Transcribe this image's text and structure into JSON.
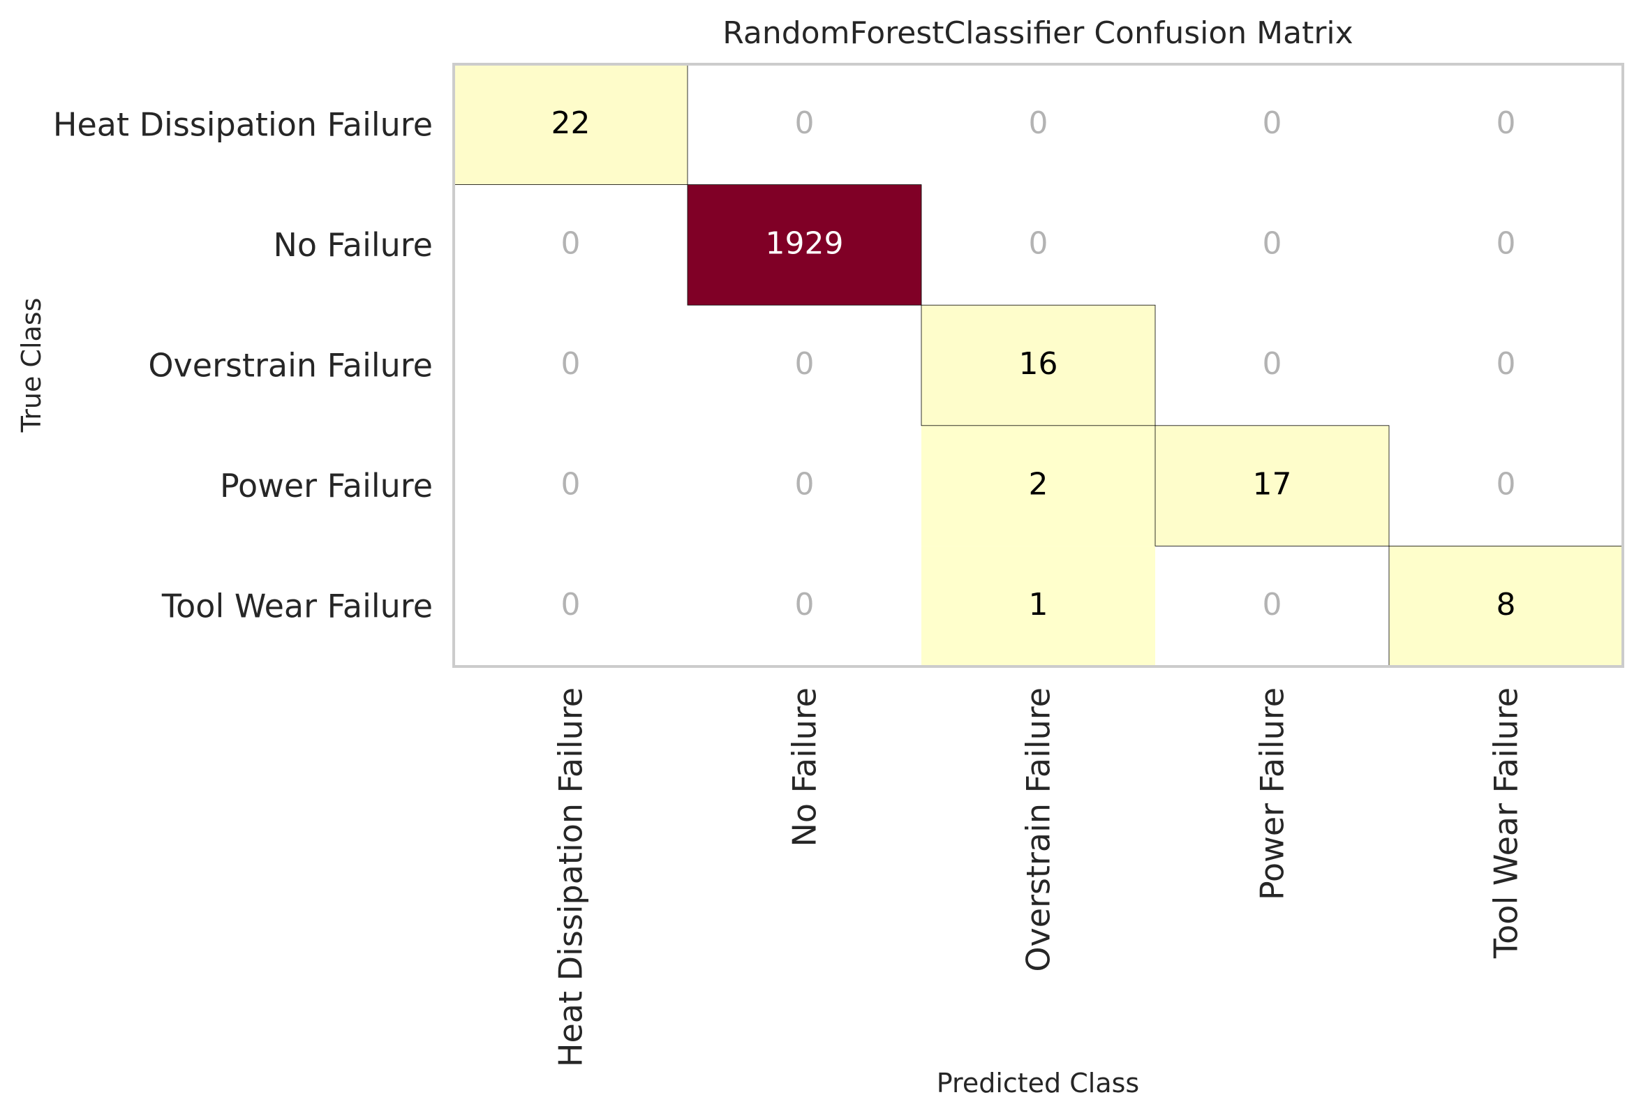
{
  "chart_data": {
    "type": "heatmap",
    "title": "RandomForestClassifier Confusion Matrix",
    "xlabel": "Predicted Class",
    "ylabel": "True Class",
    "x_categories": [
      "Heat Dissipation Failure",
      "No Failure",
      "Overstrain Failure",
      "Power Failure",
      "Tool Wear Failure"
    ],
    "y_categories": [
      "Heat Dissipation Failure",
      "No Failure",
      "Overstrain Failure",
      "Power Failure",
      "Tool Wear Failure"
    ],
    "values": [
      [
        22,
        0,
        0,
        0,
        0
      ],
      [
        0,
        1929,
        0,
        0,
        0
      ],
      [
        0,
        0,
        16,
        0,
        0
      ],
      [
        0,
        0,
        2,
        17,
        0
      ],
      [
        0,
        0,
        1,
        0,
        8
      ]
    ],
    "colors": {
      "low": "#ffffcc",
      "high": "#800026",
      "zero_text": "#b3b3b3",
      "text_dark": "#000000",
      "text_light": "#ffffff",
      "diagonal_outline": "#000000",
      "frame": "#cccccc"
    },
    "grid": false
  }
}
